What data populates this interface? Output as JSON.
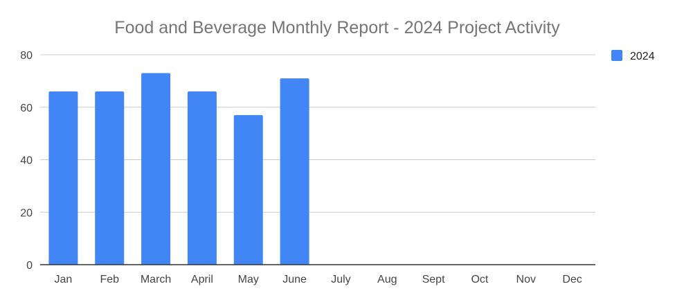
{
  "chart_data": {
    "type": "bar",
    "title": "Food and Beverage Monthly Report - 2024 Project Activity",
    "xlabel": "",
    "ylabel": "",
    "categories": [
      "Jan",
      "Feb",
      "March",
      "April",
      "May",
      "June",
      "July",
      "Aug",
      "Sept",
      "Oct",
      "Nov",
      "Dec"
    ],
    "series": [
      {
        "name": "2024",
        "values": [
          66,
          66,
          73,
          66,
          57,
          71,
          null,
          null,
          null,
          null,
          null,
          null
        ],
        "color": "#4285f4"
      }
    ],
    "ylim": [
      0,
      80
    ],
    "yticks": [
      "0",
      "20",
      "40",
      "60",
      "80"
    ],
    "grid": true,
    "legend_position": "top-right",
    "colors": {
      "gridline": "#cccccc",
      "axis": "#333333"
    }
  }
}
